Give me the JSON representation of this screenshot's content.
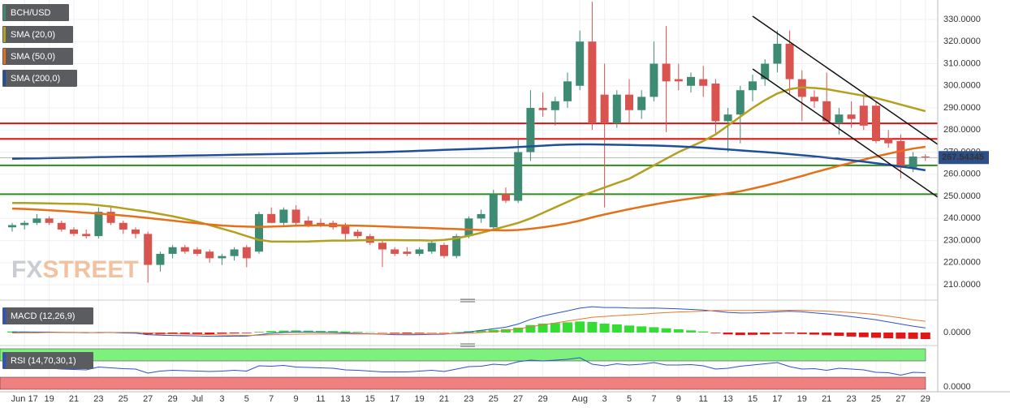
{
  "chart_data": {
    "type": "candlestick",
    "title": "BCH/USD",
    "categories": [
      null,
      "Jun 17",
      null,
      "19",
      null,
      "21",
      null,
      "23",
      null,
      "25",
      null,
      "27",
      null,
      "29",
      null,
      "Jul",
      null,
      "3",
      null,
      "5",
      null,
      "7",
      null,
      "9",
      null,
      "11",
      null,
      "13",
      null,
      "15",
      null,
      "17",
      null,
      "19",
      null,
      "21",
      null,
      "23",
      null,
      "25",
      null,
      "27",
      null,
      "29",
      null,
      null,
      "Aug",
      null,
      "3",
      null,
      "5",
      null,
      "7",
      null,
      "9",
      null,
      "11",
      null,
      "13",
      null,
      "15",
      null,
      "17",
      null,
      "19",
      null,
      "21",
      null,
      "23",
      null,
      "25",
      null,
      "27",
      null,
      "29"
    ],
    "open": [
      236,
      237,
      238,
      240,
      238,
      235,
      233,
      232,
      243,
      238,
      235,
      233,
      219,
      224,
      227,
      226,
      225,
      222,
      223,
      227,
      225,
      242,
      238,
      244,
      239,
      238,
      238,
      237,
      234,
      232,
      229,
      226,
      225,
      224,
      225,
      228,
      223,
      232,
      240,
      236,
      251,
      248,
      270,
      290,
      289,
      293,
      300,
      320,
      296,
      283,
      296,
      289,
      295,
      310,
      303,
      300,
      303,
      301,
      284,
      287,
      298,
      303,
      310,
      319,
      303,
      295,
      293,
      283,
      287,
      291,
      291,
      276,
      275,
      263,
      268
    ],
    "high": [
      238,
      239,
      242,
      241,
      239,
      236,
      235,
      245,
      245,
      239,
      236,
      234,
      225,
      228,
      228,
      227,
      226,
      224,
      227,
      228,
      243,
      245,
      245,
      246,
      241,
      240,
      239,
      238,
      235,
      233,
      230,
      227,
      227,
      227,
      230,
      229,
      233,
      241,
      244,
      253,
      254,
      276,
      298,
      297,
      295,
      306,
      325,
      338,
      310,
      298,
      303,
      298,
      320,
      327,
      310,
      306,
      309,
      303,
      290,
      300,
      305,
      312,
      325,
      325,
      307,
      298,
      306,
      290,
      293,
      296,
      293,
      280,
      278,
      270,
      269
    ],
    "low": [
      234,
      235,
      237,
      237,
      234,
      232,
      231,
      231,
      237,
      233,
      231,
      211,
      216,
      222,
      224,
      223,
      220,
      219,
      221,
      218,
      224,
      238,
      237,
      237,
      236,
      236,
      235,
      230,
      231,
      228,
      218,
      223,
      223,
      223,
      224,
      222,
      222,
      231,
      238,
      235,
      247,
      247,
      266,
      286,
      282,
      290,
      298,
      280,
      245,
      281,
      283,
      285,
      293,
      279,
      298,
      297,
      295,
      278,
      270,
      274,
      293,
      300,
      306,
      296,
      284,
      290,
      283,
      278,
      281,
      280,
      274,
      272,
      258,
      261,
      266
    ],
    "close": [
      237,
      238,
      240,
      238,
      235,
      233,
      232,
      243,
      238,
      235,
      233,
      219,
      224,
      227,
      225,
      224,
      222,
      223,
      226,
      222,
      242,
      238,
      244,
      238,
      237,
      237,
      236,
      233,
      232,
      229,
      226,
      224,
      224,
      226,
      229,
      223,
      232,
      240,
      242,
      251,
      248,
      270,
      290,
      289,
      293,
      302,
      320,
      283,
      283,
      296,
      289,
      295,
      310,
      302,
      302,
      304,
      300,
      284,
      287,
      298,
      302,
      310,
      319,
      303,
      295,
      293,
      284,
      287,
      285,
      282,
      275,
      274,
      263,
      268,
      267.54345
    ],
    "up_color": "#3d8b73",
    "down_color": "#d9534f",
    "last_price_label": "267.54345",
    "ylim": [
      203.8,
      338.8
    ],
    "yticks": [
      {
        "value": 210,
        "label": "210.0000"
      },
      {
        "value": 220,
        "label": "220.0000"
      },
      {
        "value": 230,
        "label": "230.0000"
      },
      {
        "value": 240,
        "label": "240.0000"
      },
      {
        "value": 250,
        "label": "250.0000"
      },
      {
        "value": 260,
        "label": "260.0000"
      },
      {
        "value": 270,
        "label": "270.0000"
      },
      {
        "value": 280,
        "label": "280.0000"
      },
      {
        "value": 290,
        "label": "290.0000"
      },
      {
        "value": 300,
        "label": "300.0000"
      },
      {
        "value": 310,
        "label": "310.0000"
      },
      {
        "value": 320,
        "label": "320.0000"
      },
      {
        "value": 330,
        "label": "330.0000"
      }
    ],
    "grid": true,
    "series": [
      {
        "name": "SMA (20,0)",
        "color": "#b3a01f",
        "values": [
          247.0,
          247.0,
          246.9,
          246.8,
          246.7,
          246.6,
          246.5,
          246.0,
          245.4,
          244.6,
          243.8,
          243.0,
          242.0,
          241.0,
          239.8,
          238.5,
          237.0,
          235.4,
          233.8,
          232.0,
          230.3,
          229.6,
          229.5,
          229.5,
          229.6,
          229.8,
          230.0,
          230.0,
          230.1,
          230.2,
          230.2,
          230.2,
          230.1,
          230.1,
          230.0,
          230.3,
          231.0,
          232.2,
          233.5,
          235.0,
          236.5,
          238.0,
          240.0,
          242.5,
          245.0,
          247.5,
          250.0,
          252.0,
          254.0,
          256.0,
          258.0,
          261.0,
          264.0,
          267.0,
          270.0,
          272.5,
          275.0,
          278.0,
          282.0,
          286.0,
          290.0,
          293.5,
          296.5,
          298.5,
          299.3,
          299.0,
          298.5,
          297.5,
          296.5,
          295.5,
          294.5,
          293.0,
          291.5,
          290.0,
          288.5
        ]
      },
      {
        "name": "SMA (50,0)",
        "color": "#e5701a",
        "values": [
          244.5,
          244.3,
          244.0,
          243.7,
          243.4,
          243.0,
          242.6,
          242.2,
          241.8,
          241.3,
          240.8,
          240.2,
          239.6,
          239.0,
          238.4,
          237.8,
          237.3,
          236.8,
          236.5,
          236.3,
          236.2,
          236.3,
          236.5,
          236.7,
          236.8,
          236.9,
          236.9,
          236.8,
          236.7,
          236.6,
          236.4,
          236.2,
          236.0,
          235.8,
          235.6,
          235.4,
          235.2,
          235.0,
          234.8,
          234.7,
          234.6,
          234.8,
          235.3,
          236.0,
          236.8,
          237.8,
          239.0,
          240.5,
          241.8,
          243.0,
          244.2,
          245.3,
          246.3,
          247.3,
          248.2,
          249.0,
          249.8,
          250.6,
          251.4,
          252.3,
          253.5,
          254.8,
          256.2,
          257.7,
          259.2,
          260.8,
          262.3,
          263.8,
          265.2,
          266.6,
          268.0,
          269.3,
          270.5,
          271.6,
          272.4
        ]
      },
      {
        "name": "SMA (200,0)",
        "color": "#1f4f9c",
        "values": [
          267.0,
          267.1,
          267.2,
          267.3,
          267.4,
          267.5,
          267.6,
          267.7,
          267.8,
          267.9,
          268.0,
          268.1,
          268.2,
          268.3,
          268.4,
          268.5,
          268.6,
          268.7,
          268.8,
          268.9,
          269.0,
          269.1,
          269.2,
          269.3,
          269.4,
          269.5,
          269.6,
          269.7,
          269.8,
          269.9,
          270.0,
          270.2,
          270.4,
          270.6,
          270.8,
          271.0,
          271.2,
          271.4,
          271.6,
          271.8,
          272.0,
          272.3,
          272.6,
          272.9,
          273.2,
          273.4,
          273.5,
          273.5,
          273.4,
          273.3,
          273.2,
          273.1,
          273.0,
          272.8,
          272.6,
          272.3,
          272.0,
          271.6,
          271.2,
          270.8,
          270.4,
          270.0,
          269.6,
          269.1,
          268.6,
          268.1,
          267.5,
          266.9,
          266.3,
          265.7,
          265.0,
          264.3,
          263.5,
          262.7,
          261.8
        ]
      }
    ],
    "levels": [
      {
        "value": 283,
        "color": "#e01010"
      },
      {
        "value": 276,
        "color": "#e01010"
      },
      {
        "value": 264,
        "color": "#2f8a1f"
      },
      {
        "value": 251,
        "color": "#2f8a1f"
      }
    ],
    "watermark": [
      "FX",
      "STREET"
    ],
    "macd": {
      "name": "MACD (12,26,9)",
      "ylim": [
        -5,
        13
      ],
      "yticks": [
        {
          "value": 0,
          "label": "0.0000"
        }
      ],
      "histogram": [
        0.5,
        0.4,
        0.3,
        0.2,
        0.1,
        0,
        -0.1,
        0.1,
        0,
        -0.2,
        -0.3,
        -0.8,
        -0.9,
        -0.8,
        -0.7,
        -0.7,
        -0.8,
        -0.6,
        -0.4,
        -0.3,
        0.3,
        0.7,
        0.9,
        1.0,
        0.9,
        0.8,
        0.7,
        0.5,
        0.3,
        0.1,
        -0.1,
        -0.3,
        -0.4,
        -0.3,
        -0.2,
        -0.2,
        0.2,
        0.6,
        1.0,
        1.3,
        1.6,
        2.3,
        3.5,
        4.2,
        4.5,
        4.8,
        5.2,
        5.0,
        4.2,
        3.8,
        3.3,
        2.9,
        2.5,
        2.0,
        1.5,
        1.0,
        0.5,
        -0.3,
        -0.9,
        -1.2,
        -1.1,
        -0.9,
        -0.6,
        -0.5,
        -0.7,
        -1.0,
        -1.3,
        -1.6,
        -1.9,
        -2.2,
        -2.5,
        -2.7,
        -2.9,
        -3.0,
        -3.1
      ],
      "macd": [
        0.3,
        0.3,
        0.2,
        0.2,
        0.1,
        0,
        -0.1,
        0,
        0,
        -0.2,
        -0.3,
        -1.0,
        -1.3,
        -1.4,
        -1.5,
        -1.6,
        -1.8,
        -1.8,
        -1.7,
        -1.7,
        -1.0,
        -0.4,
        0,
        0.2,
        0.2,
        0.1,
        0,
        -0.2,
        -0.4,
        -0.6,
        -0.8,
        -1.0,
        -1.1,
        -1.0,
        -0.9,
        -0.8,
        -0.3,
        0.3,
        1.0,
        1.8,
        2.5,
        4.0,
        6.2,
        7.8,
        9.0,
        10.2,
        11.5,
        12.2,
        11.8,
        11.8,
        11.6,
        11.5,
        11.6,
        11.4,
        11.2,
        10.9,
        10.6,
        10.1,
        9.5,
        9.2,
        9.3,
        9.5,
        9.8,
        10.0,
        9.8,
        9.3,
        8.8,
        8.2,
        7.5,
        6.8,
        6.0,
        5.0,
        4.0,
        3.0,
        2.2
      ],
      "signal": [
        -0.2,
        -0.1,
        -0.1,
        0,
        0,
        0,
        0,
        -0.1,
        0,
        0,
        0,
        -0.2,
        -0.4,
        -0.6,
        -0.8,
        -0.9,
        -1.0,
        -1.2,
        -1.3,
        -1.4,
        -1.3,
        -1.1,
        -0.9,
        -0.8,
        -0.7,
        -0.7,
        -0.7,
        -0.7,
        -0.7,
        -0.7,
        -0.7,
        -0.7,
        -0.7,
        -0.7,
        -0.7,
        -0.6,
        -0.5,
        -0.3,
        0,
        0.5,
        0.9,
        1.7,
        2.7,
        3.6,
        4.5,
        5.4,
        6.3,
        7.2,
        7.6,
        8.0,
        8.3,
        8.6,
        9.1,
        9.4,
        9.7,
        9.9,
        10.1,
        10.4,
        10.4,
        10.4,
        10.4,
        10.4,
        10.4,
        10.5,
        10.5,
        10.3,
        10.1,
        9.8,
        9.4,
        9.0,
        8.5,
        7.7,
        6.9,
        6.0,
        5.3
      ],
      "macd_color": "#2a52c9",
      "signal_color": "#e8782a",
      "up_color": "#33dd33",
      "down_color": "#e01818"
    },
    "rsi": {
      "name": "RSI (14,70,30,1)",
      "ylim": [
        0,
        100
      ],
      "yticks": [
        {
          "value": 0,
          "label": "0.0000"
        }
      ],
      "upper": 70,
      "lower": 30,
      "values": [
        52,
        53,
        54,
        52,
        50,
        49,
        48,
        55,
        53,
        51,
        50,
        40,
        45,
        47,
        46,
        45,
        44,
        45,
        47,
        45,
        58,
        57,
        59,
        55,
        54,
        53,
        52,
        48,
        47,
        45,
        43,
        43,
        43,
        45,
        47,
        44,
        50,
        56,
        57,
        62,
        60,
        68,
        72,
        70,
        72,
        74,
        78,
        62,
        58,
        63,
        60,
        62,
        66,
        60,
        60,
        61,
        58,
        50,
        52,
        57,
        60,
        63,
        66,
        56,
        50,
        51,
        47,
        52,
        50,
        48,
        42,
        41,
        35,
        42,
        41
      ],
      "color": "#2a52c9",
      "upper_color": "#7ef07e",
      "lower_color": "#f08080"
    }
  }
}
